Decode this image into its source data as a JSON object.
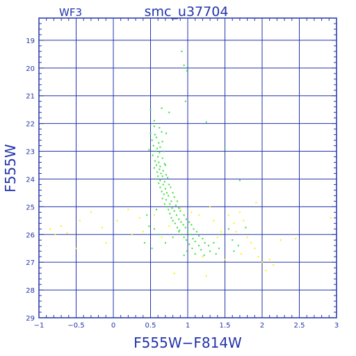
{
  "chart_data": {
    "type": "scatter",
    "title": "smc_u37704",
    "field_label": "WF3",
    "xlabel": "F555W−F814W",
    "ylabel": "F555W",
    "xlim": [
      -1,
      3
    ],
    "ylim": [
      29,
      18.2
    ],
    "y_inverted": true,
    "grid": true,
    "x_ticks": [
      -1,
      -0.5,
      0,
      0.5,
      1,
      1.5,
      2,
      2.5,
      3
    ],
    "x_tick_labels": [
      "−1",
      "−0.5",
      "0",
      "0.5",
      "1",
      "1.5",
      "2",
      "2.5",
      "3"
    ],
    "y_ticks": [
      19,
      20,
      21,
      22,
      23,
      24,
      25,
      26,
      27,
      28,
      29
    ],
    "y_tick_labels": [
      "19",
      "20",
      "21",
      "22",
      "23",
      "24",
      "25",
      "26",
      "27",
      "28",
      "29"
    ],
    "colors": {
      "axis": "#2233aa",
      "grid": "#2233aa"
    },
    "series": [
      {
        "color": "#33dd33",
        "points": [
          [
            0.92,
            19.4
          ],
          [
            0.95,
            19.9
          ],
          [
            0.98,
            20.0
          ],
          [
            0.99,
            20.1
          ],
          [
            0.97,
            21.2
          ],
          [
            1.25,
            21.95
          ],
          [
            0.5,
            21.5
          ],
          [
            0.55,
            21.9
          ],
          [
            0.65,
            21.45
          ],
          [
            0.75,
            21.6
          ],
          [
            0.55,
            22.1
          ],
          [
            0.62,
            22.15
          ],
          [
            0.5,
            22.35
          ],
          [
            0.56,
            22.4
          ],
          [
            0.65,
            22.3
          ],
          [
            0.71,
            22.35
          ],
          [
            0.58,
            22.5
          ],
          [
            0.52,
            22.6
          ],
          [
            0.61,
            22.7
          ],
          [
            0.66,
            22.65
          ],
          [
            0.54,
            22.8
          ],
          [
            0.59,
            22.9
          ],
          [
            0.63,
            22.85
          ],
          [
            0.48,
            22.95
          ],
          [
            0.57,
            23.0
          ],
          [
            0.62,
            23.05
          ],
          [
            0.68,
            23.0
          ],
          [
            0.53,
            23.15
          ],
          [
            0.6,
            23.2
          ],
          [
            0.66,
            23.25
          ],
          [
            0.56,
            23.35
          ],
          [
            0.61,
            23.4
          ],
          [
            0.69,
            23.45
          ],
          [
            0.58,
            23.5
          ],
          [
            0.63,
            23.55
          ],
          [
            0.7,
            23.5
          ],
          [
            0.55,
            23.6
          ],
          [
            0.62,
            23.65
          ],
          [
            0.67,
            23.7
          ],
          [
            0.59,
            23.75
          ],
          [
            0.64,
            23.8
          ],
          [
            0.71,
            23.85
          ],
          [
            0.6,
            23.9
          ],
          [
            0.66,
            23.9
          ],
          [
            0.73,
            23.95
          ],
          [
            0.57,
            24.0
          ],
          [
            0.63,
            24.05
          ],
          [
            0.69,
            24.1
          ],
          [
            0.61,
            24.15
          ],
          [
            0.67,
            24.2
          ],
          [
            0.75,
            24.2
          ],
          [
            0.63,
            24.3
          ],
          [
            0.7,
            24.35
          ],
          [
            0.77,
            24.3
          ],
          [
            0.65,
            24.45
          ],
          [
            0.72,
            24.5
          ],
          [
            0.8,
            24.5
          ],
          [
            0.68,
            24.55
          ],
          [
            0.74,
            24.6
          ],
          [
            0.82,
            24.65
          ],
          [
            0.66,
            24.7
          ],
          [
            0.71,
            24.75
          ],
          [
            0.78,
            24.8
          ],
          [
            0.86,
            24.8
          ],
          [
            0.69,
            24.9
          ],
          [
            0.76,
            24.9
          ],
          [
            0.84,
            24.95
          ],
          [
            0.72,
            25.0
          ],
          [
            0.79,
            25.05
          ],
          [
            0.88,
            25.05
          ],
          [
            0.74,
            25.1
          ],
          [
            0.82,
            25.15
          ],
          [
            0.9,
            25.15
          ],
          [
            0.76,
            25.25
          ],
          [
            0.85,
            25.3
          ],
          [
            0.95,
            25.3
          ],
          [
            0.78,
            25.4
          ],
          [
            0.88,
            25.45
          ],
          [
            0.98,
            25.45
          ],
          [
            0.8,
            25.5
          ],
          [
            0.91,
            25.55
          ],
          [
            1.02,
            25.55
          ],
          [
            0.83,
            25.6
          ],
          [
            0.94,
            25.65
          ],
          [
            1.05,
            25.65
          ],
          [
            0.86,
            25.75
          ],
          [
            0.97,
            25.75
          ],
          [
            1.08,
            25.8
          ],
          [
            0.89,
            25.85
          ],
          [
            1.0,
            25.9
          ],
          [
            1.12,
            25.9
          ],
          [
            0.92,
            26.0
          ],
          [
            1.04,
            26.0
          ],
          [
            1.15,
            26.05
          ],
          [
            0.95,
            26.1
          ],
          [
            1.07,
            26.15
          ],
          [
            1.2,
            26.15
          ],
          [
            0.98,
            26.2
          ],
          [
            1.1,
            26.25
          ],
          [
            1.23,
            26.3
          ],
          [
            1.02,
            26.35
          ],
          [
            1.15,
            26.4
          ],
          [
            1.28,
            26.4
          ],
          [
            1.06,
            26.5
          ],
          [
            1.18,
            26.55
          ],
          [
            1.3,
            26.6
          ],
          [
            0.99,
            26.6
          ],
          [
            1.1,
            26.7
          ],
          [
            0.95,
            26.75
          ],
          [
            1.22,
            26.75
          ],
          [
            0.58,
            25.1
          ],
          [
            0.55,
            25.8
          ],
          [
            0.62,
            26.0
          ],
          [
            0.7,
            26.3
          ],
          [
            0.8,
            26.1
          ],
          [
            0.52,
            26.5
          ],
          [
            0.88,
            25.9
          ],
          [
            1.35,
            26.3
          ],
          [
            1.42,
            26.5
          ],
          [
            1.38,
            26.7
          ],
          [
            1.45,
            26.0
          ],
          [
            1.55,
            25.8
          ],
          [
            1.6,
            26.2
          ],
          [
            1.68,
            26.4
          ],
          [
            1.7,
            24.05
          ],
          [
            1.5,
            22.9
          ],
          [
            1.78,
            25.75
          ],
          [
            1.62,
            26.6
          ],
          [
            0.45,
            25.3
          ],
          [
            0.48,
            25.7
          ],
          [
            0.42,
            26.3
          ]
        ]
      },
      {
        "color": "#ffee00",
        "points": [
          [
            -0.85,
            25.8
          ],
          [
            -0.78,
            26.0
          ],
          [
            -0.7,
            25.7
          ],
          [
            -0.62,
            25.95
          ],
          [
            -0.5,
            26.5
          ],
          [
            -0.45,
            25.5
          ],
          [
            -0.3,
            25.2
          ],
          [
            -0.15,
            25.75
          ],
          [
            -0.1,
            26.3
          ],
          [
            0.05,
            25.5
          ],
          [
            0.2,
            25.1
          ],
          [
            0.25,
            26.0
          ],
          [
            0.35,
            25.4
          ],
          [
            0.4,
            25.9
          ],
          [
            0.55,
            25.3
          ],
          [
            0.65,
            26.1
          ],
          [
            0.75,
            25.7
          ],
          [
            0.82,
            27.4
          ],
          [
            1.05,
            25.2
          ],
          [
            1.15,
            25.3
          ],
          [
            1.2,
            26.8
          ],
          [
            1.3,
            25.0
          ],
          [
            1.35,
            25.5
          ],
          [
            1.45,
            25.9
          ],
          [
            1.5,
            26.9
          ],
          [
            1.55,
            25.3
          ],
          [
            1.62,
            25.6
          ],
          [
            1.7,
            25.2
          ],
          [
            1.75,
            25.5
          ],
          [
            1.8,
            26.1
          ],
          [
            1.85,
            26.3
          ],
          [
            1.9,
            26.5
          ],
          [
            1.92,
            24.85
          ],
          [
            1.95,
            26.8
          ],
          [
            2.0,
            27.0
          ],
          [
            2.05,
            27.3
          ],
          [
            2.1,
            26.9
          ],
          [
            2.25,
            26.2
          ],
          [
            2.45,
            26.15
          ],
          [
            2.92,
            25.4
          ],
          [
            1.25,
            27.5
          ],
          [
            1.4,
            26.1
          ],
          [
            1.65,
            25.9
          ],
          [
            1.72,
            26.7
          ],
          [
            2.15,
            27.1
          ],
          [
            0.9,
            25.05
          ]
        ]
      }
    ]
  }
}
